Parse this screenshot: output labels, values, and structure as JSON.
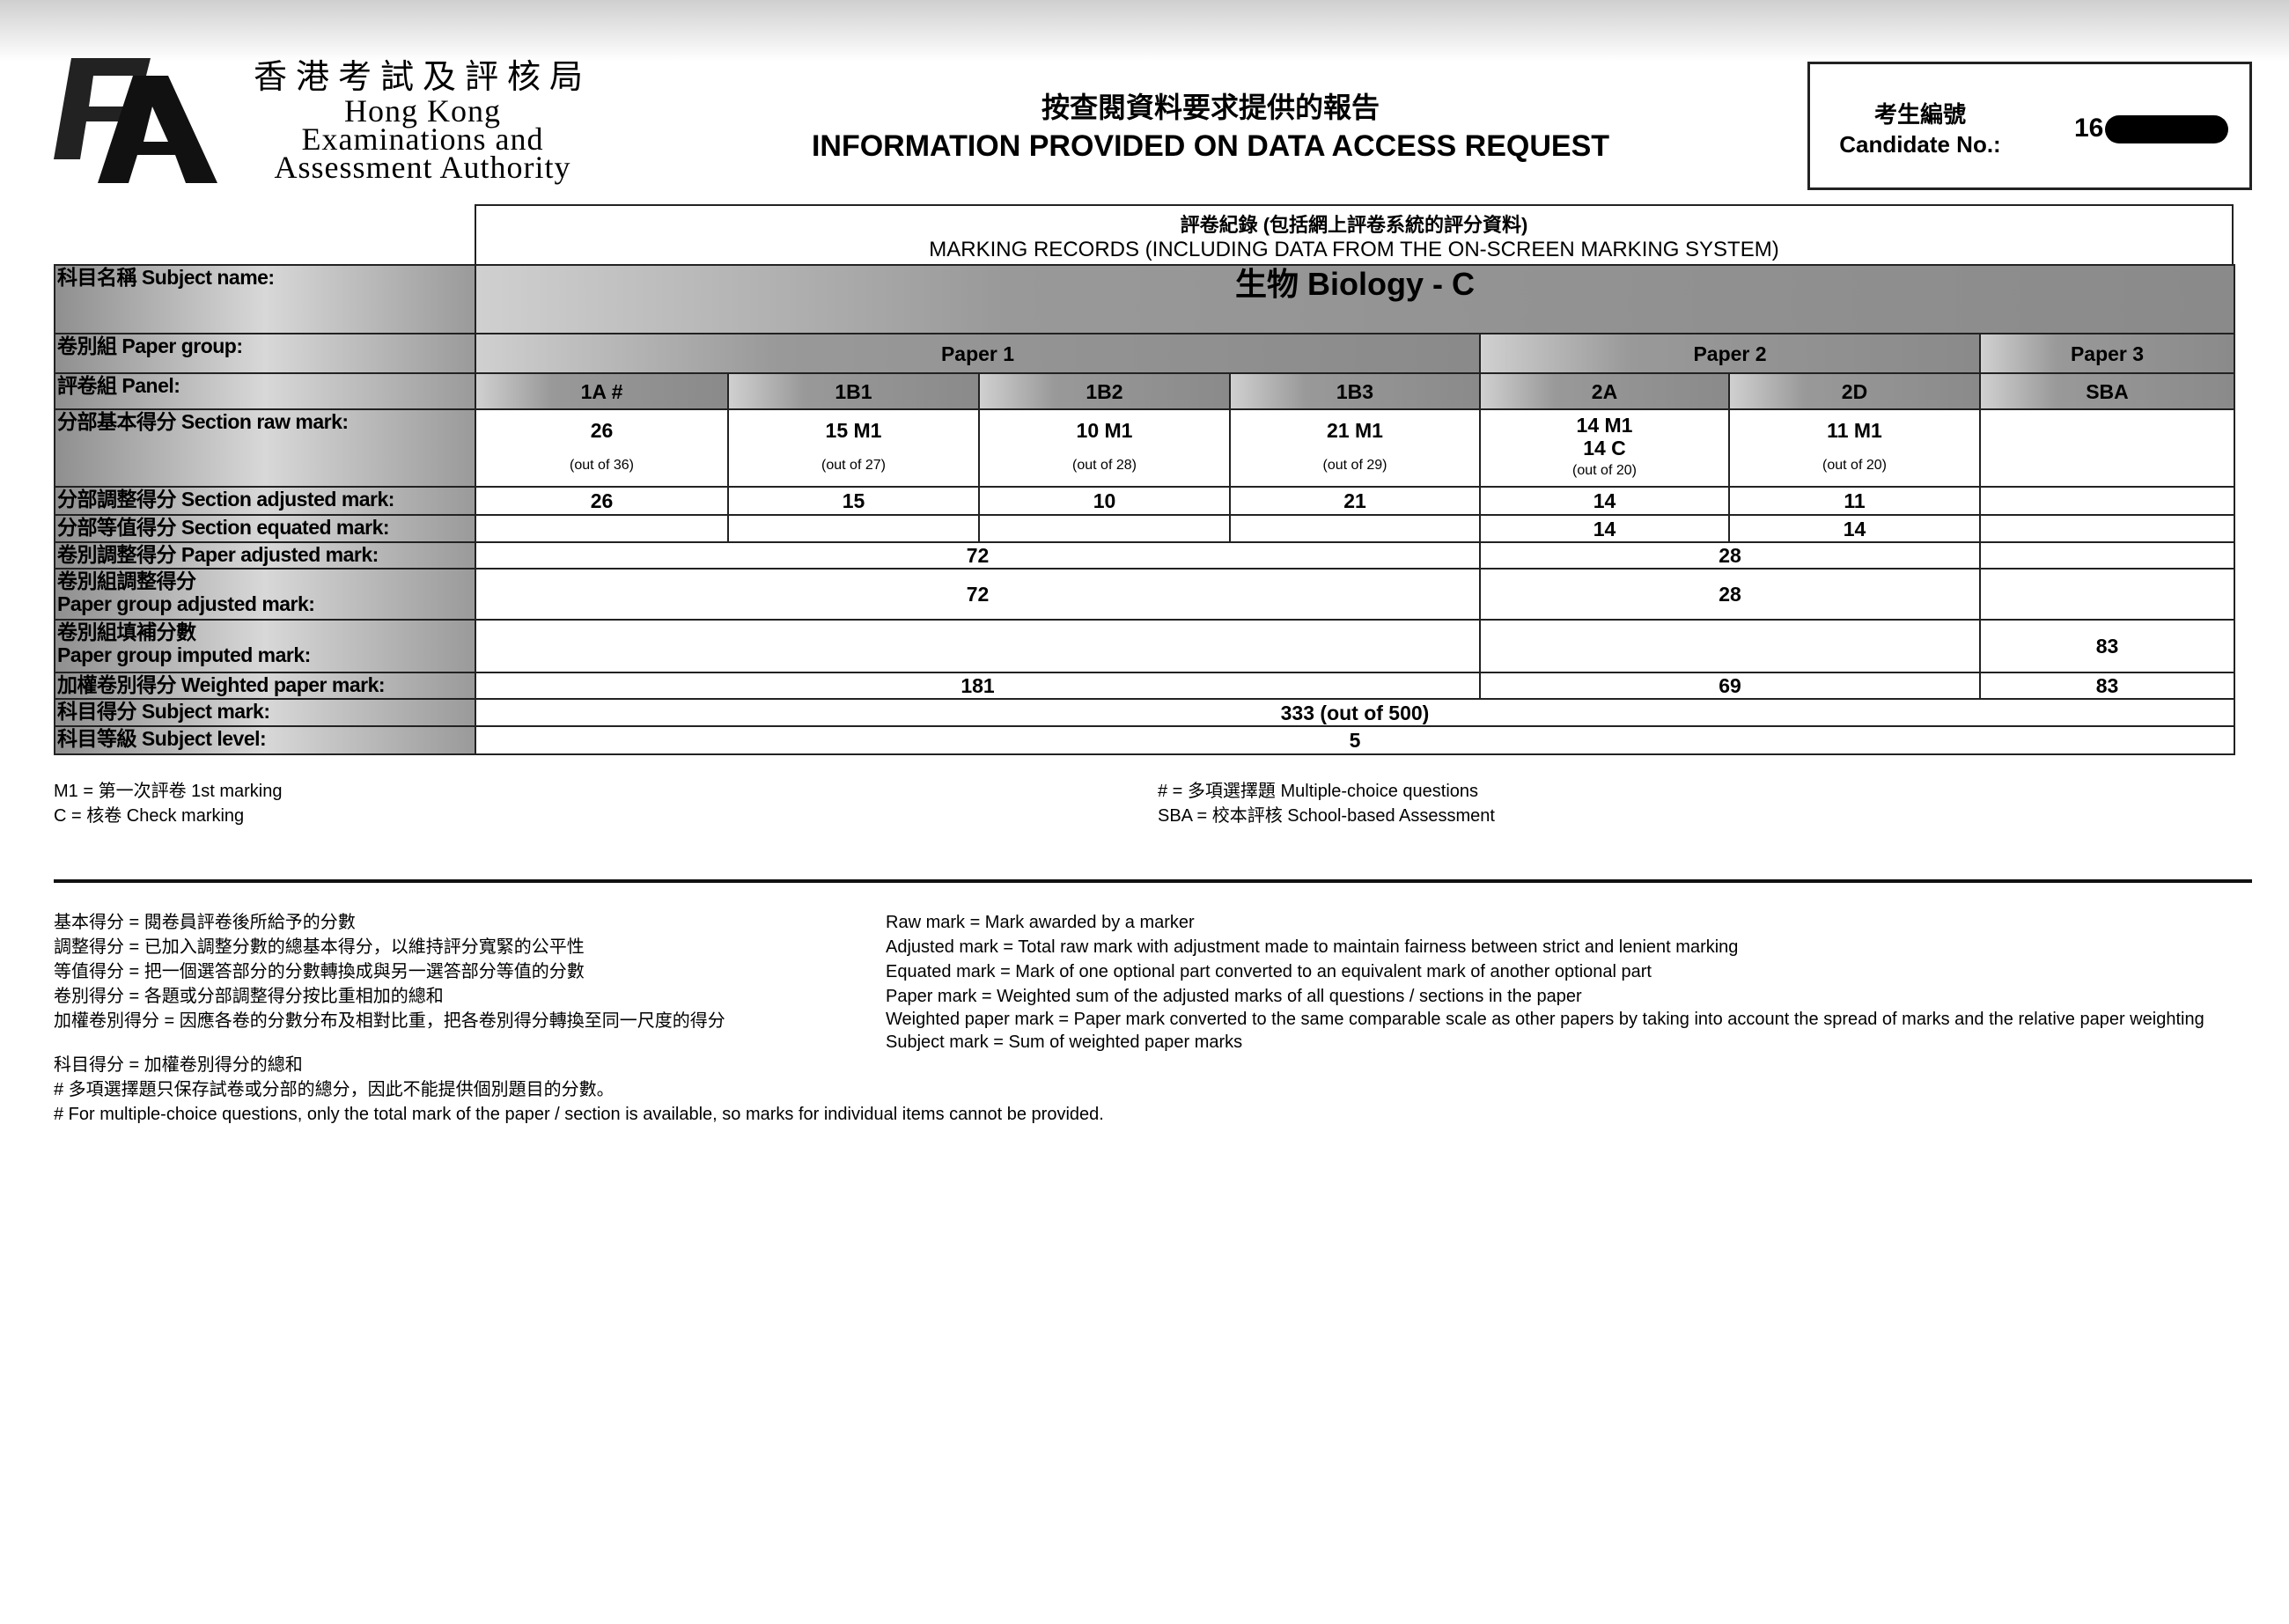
{
  "header": {
    "org_zh": "香港考試及評核局",
    "org_en": [
      "Hong Kong",
      "Examinations and",
      "Assessment Authority"
    ],
    "logo_text": "HKEAA",
    "title_zh": "按查閱資料要求提供的報告",
    "title_en": "INFORMATION PROVIDED ON DATA ACCESS REQUEST",
    "candidate_label_zh": "考生編號",
    "candidate_label_en": "Candidate No.:",
    "candidate_no_visible": "16"
  },
  "table": {
    "caption_zh": "評卷紀錄 (包括網上評卷系統的評分資料)",
    "caption_en": "MARKING RECORDS (INCLUDING DATA FROM THE ON-SCREEN MARKING SYSTEM)",
    "row_labels": {
      "subject_name": "科目名稱 Subject name:",
      "paper_group": "卷別組 Paper group:",
      "panel": "評卷組 Panel:",
      "raw": "分部基本得分 Section raw mark:",
      "adjusted": "分部調整得分 Section adjusted mark:",
      "equated": "分部等值得分 Section equated mark:",
      "paper_adjusted": "卷別調整得分 Paper adjusted mark:",
      "pg_adjusted_zh": "卷別組調整得分",
      "pg_adjusted_en": "Paper group adjusted mark:",
      "pg_imputed_zh": "卷別組填補分數",
      "pg_imputed_en": "Paper group imputed mark:",
      "weighted": "加權卷別得分 Weighted paper mark:",
      "subject_mark": "科目得分 Subject mark:",
      "subject_level": "科目等級 Subject level:"
    },
    "subject": "生物 Biology - C",
    "papers": [
      "Paper 1",
      "Paper 2",
      "Paper 3"
    ],
    "panels": [
      "1A #",
      "1B1",
      "1B2",
      "1B3",
      "2A",
      "2D",
      "SBA"
    ],
    "raw": [
      "26",
      "15 M1",
      "10 M1",
      "21 M1",
      "14 M1",
      "11 M1",
      ""
    ],
    "raw_extra_2A": "14 C",
    "out_of": [
      "(out of 36)",
      "(out of 27)",
      "(out of 28)",
      "(out of 29)",
      "(out of 20)",
      "(out of 20)",
      ""
    ],
    "adjusted": [
      "26",
      "15",
      "10",
      "21",
      "14",
      "11",
      ""
    ],
    "equated": [
      "",
      "",
      "",
      "",
      "14",
      "14",
      ""
    ],
    "paper_adjusted": [
      "72",
      "28",
      ""
    ],
    "pg_adjusted": [
      "72",
      "28",
      ""
    ],
    "pg_imputed": [
      "",
      "",
      "83"
    ],
    "weighted": [
      "181",
      "69",
      "83"
    ],
    "subject_mark": "333 (out of 500)",
    "subject_level": "5"
  },
  "footnotes": {
    "m1": "M1 = 第一次評卷 1st marking",
    "c": "C = 核卷 Check marking",
    "hash": "# = 多項選擇題 Multiple-choice questions",
    "sba": "SBA = 校本評核 School-based Assessment"
  },
  "definitions_zh": [
    "基本得分 = 閱卷員評卷後所給予的分數",
    "調整得分 = 已加入調整分數的總基本得分，以維持評分寬緊的公平性",
    "等值得分 = 把一個選答部分的分數轉換成與另一選答部分等值的分數",
    "卷別得分 = 各題或分部調整得分按比重相加的總和",
    "加權卷別得分 = 因應各卷的分數分布及相對比重，把各卷別得分轉換至同一尺度的得分",
    "科目得分 = 加權卷別得分的總和",
    "# 多項選擇題只保存試卷或分部的總分，因此不能提供個別題目的分數。",
    "# For multiple-choice questions, only the total mark of the paper / section is available, so marks for individual items cannot be provided."
  ],
  "definitions_en": [
    "Raw mark = Mark awarded by a marker",
    "Adjusted mark = Total raw mark with adjustment made to maintain fairness between strict and lenient marking",
    "Equated mark = Mark of one optional part converted to an equivalent mark of another optional part",
    "Paper mark = Weighted sum of the adjusted marks of all questions / sections in the paper",
    "Weighted paper mark = Paper mark converted to the same comparable scale as other papers by taking into account the spread of marks and the relative paper weighting",
    "Subject mark = Sum of weighted paper marks"
  ]
}
